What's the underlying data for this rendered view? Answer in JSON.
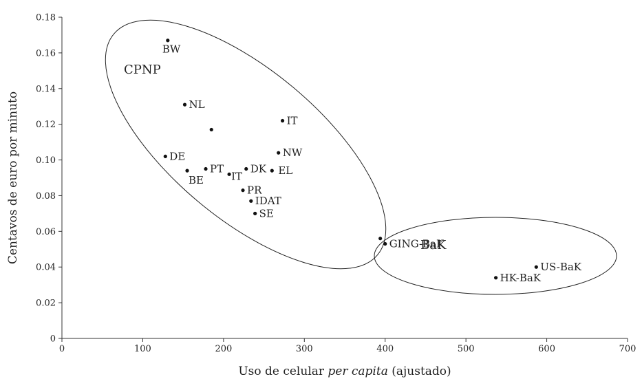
{
  "chart_data": {
    "type": "scatter",
    "xlabel_main": "Uso de celular ",
    "xlabel_italic": "per capita",
    "xlabel_tail": " (ajustado)",
    "ylabel": "Centavos de euro por minuto",
    "xlim": [
      0,
      700
    ],
    "ylim": [
      0,
      0.18
    ],
    "x_ticks": [
      0,
      100,
      200,
      300,
      400,
      500,
      600,
      700
    ],
    "y_ticks": [
      "0",
      "0.02",
      "0.04",
      "0.06",
      "0.08",
      "0.10",
      "0.12",
      "0.14",
      "0.16",
      "0.18"
    ],
    "y_tick_values": [
      0,
      0.02,
      0.04,
      0.06,
      0.08,
      0.1,
      0.12,
      0.14,
      0.16,
      0.18
    ],
    "points": [
      {
        "label": "BW",
        "x": 131,
        "y": 0.167,
        "label_pos": "below"
      },
      {
        "label": "NL",
        "x": 152,
        "y": 0.131,
        "label_pos": "right"
      },
      {
        "label": "",
        "x": 185,
        "y": 0.117,
        "label_pos": "none"
      },
      {
        "label": "IT",
        "x": 273,
        "y": 0.122,
        "label_pos": "right"
      },
      {
        "label": "DE",
        "x": 128,
        "y": 0.102,
        "label_pos": "right"
      },
      {
        "label": "NW",
        "x": 268,
        "y": 0.104,
        "label_pos": "right"
      },
      {
        "label": "BE",
        "x": 155,
        "y": 0.094,
        "label_pos": "below-right"
      },
      {
        "label": "PT",
        "x": 178,
        "y": 0.095,
        "label_pos": "right"
      },
      {
        "label": "DK",
        "x": 228,
        "y": 0.095,
        "label_pos": "right"
      },
      {
        "label": "EL",
        "x": 260,
        "y": 0.094,
        "label_pos": "right-wide"
      },
      {
        "label": "IT",
        "x": 207,
        "y": 0.092,
        "label_pos": "right-low"
      },
      {
        "label": "PR",
        "x": 224,
        "y": 0.083,
        "label_pos": "right"
      },
      {
        "label": "IDAT",
        "x": 234,
        "y": 0.077,
        "label_pos": "right"
      },
      {
        "label": "SE",
        "x": 239,
        "y": 0.07,
        "label_pos": "right"
      },
      {
        "label": "",
        "x": 394,
        "y": 0.056,
        "label_pos": "none"
      },
      {
        "label": "GING-BaK",
        "x": 400,
        "y": 0.053,
        "label_pos": "right"
      },
      {
        "label": "US-BaK",
        "x": 587,
        "y": 0.04,
        "label_pos": "right"
      },
      {
        "label": "HK-BaK",
        "x": 537,
        "y": 0.034,
        "label_pos": "right"
      }
    ],
    "groups": [
      {
        "label": "CPNP"
      },
      {
        "label": "BaK"
      }
    ]
  }
}
